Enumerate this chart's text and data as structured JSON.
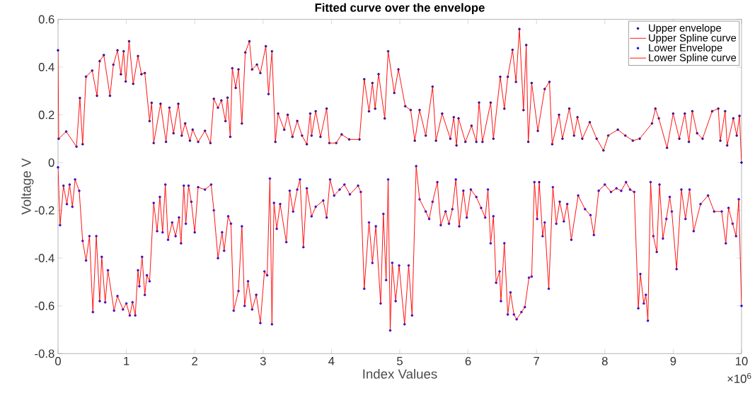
{
  "chart_data": {
    "type": "line",
    "title": "Fitted curve over the envelope",
    "xlabel": "Index Values",
    "ylabel": "Voltage V",
    "annotations": [
      "×10$^{6}$"
    ],
    "xlim": [
      0,
      10
    ],
    "ylim": [
      -0.8,
      0.6
    ],
    "xticks": [
      0,
      1,
      2,
      3,
      4,
      5,
      6,
      7,
      8,
      9,
      10
    ],
    "yticks": [
      -0.8,
      -0.6,
      -0.4,
      -0.2,
      0,
      0.2,
      0.4,
      0.6
    ],
    "legend": "top right",
    "series": [
      {
        "name": "Upper envelope",
        "type": "scatter",
        "marker": "circle",
        "color": "#0000aa",
        "x": [
          0,
          0.01,
          0.12,
          0.27,
          0.32,
          0.36,
          0.41,
          0.5,
          0.57,
          0.61,
          0.67,
          0.76,
          0.81,
          0.87,
          0.92,
          0.96,
          0.99,
          1.04,
          1.1,
          1.17,
          1.22,
          1.27,
          1.34,
          1.37,
          1.4,
          1.5,
          1.58,
          1.63,
          1.69,
          1.76,
          1.81,
          1.86,
          1.93,
          1.97,
          2.05,
          2.15,
          2.23,
          2.28,
          2.34,
          2.39,
          2.45,
          2.48,
          2.52,
          2.55,
          2.6,
          2.64,
          2.69,
          2.74,
          2.8,
          2.84,
          2.91,
          2.96,
          3.04,
          3.08,
          3.13,
          3.18,
          3.22,
          3.31,
          3.36,
          3.43,
          3.5,
          3.57,
          3.64,
          3.69,
          3.71,
          3.77,
          3.84,
          3.93,
          3.97,
          4.07,
          4.15,
          4.26,
          4.41,
          4.48,
          4.55,
          4.6,
          4.64,
          4.69,
          4.78,
          4.83,
          4.92,
          4.98,
          5.08,
          5.16,
          5.22,
          5.29,
          5.38,
          5.48,
          5.53,
          5.62,
          5.74,
          5.79,
          5.83,
          5.86,
          5.96,
          6.05,
          6.12,
          6.16,
          6.21,
          6.33,
          6.37,
          6.47,
          6.53,
          6.58,
          6.65,
          6.7,
          6.75,
          6.81,
          6.85,
          6.88,
          6.93,
          7.02,
          7.12,
          7.19,
          7.23,
          7.33,
          7.38,
          7.48,
          7.55,
          7.6,
          7.67,
          7.78,
          7.88,
          7.98,
          8.05,
          8.19,
          8.3,
          8.41,
          8.51,
          8.69,
          8.74,
          8.79,
          8.91,
          9.0,
          9.09,
          9.17,
          9.23,
          9.28,
          9.35,
          9.43,
          9.57,
          9.66,
          9.69,
          9.76,
          9.79,
          9.88,
          9.93,
          9.97,
          10.0
        ],
        "values": [
          0.47,
          0.1,
          0.13,
          0.067,
          0.27,
          0.077,
          0.36,
          0.385,
          0.28,
          0.425,
          0.45,
          0.28,
          0.41,
          0.47,
          0.37,
          0.466,
          0.34,
          0.508,
          0.33,
          0.446,
          0.37,
          0.375,
          0.174,
          0.25,
          0.082,
          0.246,
          0.087,
          0.23,
          0.123,
          0.246,
          0.113,
          0.164,
          0.092,
          0.138,
          0.087,
          0.133,
          0.082,
          0.267,
          0.23,
          0.26,
          0.174,
          0.272,
          0.108,
          0.395,
          0.313,
          0.39,
          0.164,
          0.461,
          0.508,
          0.39,
          0.41,
          0.375,
          0.487,
          0.287,
          0.466,
          0.087,
          0.205,
          0.138,
          0.2,
          0.108,
          0.174,
          0.113,
          0.077,
          0.205,
          0.113,
          0.215,
          0.108,
          0.226,
          0.082,
          0.082,
          0.118,
          0.097,
          0.097,
          0.349,
          0.215,
          0.333,
          0.226,
          0.37,
          0.185,
          0.466,
          0.292,
          0.39,
          0.236,
          0.22,
          0.092,
          0.22,
          0.113,
          0.318,
          0.092,
          0.205,
          0.1,
          0.19,
          0.072,
          0.185,
          0.087,
          0.154,
          0.087,
          0.251,
          0.087,
          0.251,
          0.1,
          0.359,
          0.226,
          0.359,
          0.472,
          0.338,
          0.559,
          0.22,
          0.492,
          0.087,
          0.333,
          0.133,
          0.308,
          0.338,
          0.077,
          0.2,
          0.1,
          0.226,
          0.113,
          0.19,
          0.1,
          0.169,
          0.1,
          0.051,
          0.113,
          0.138,
          0.113,
          0.092,
          0.1,
          0.164,
          0.226,
          0.185,
          0.062,
          0.205,
          0.1,
          0.205,
          0.087,
          0.215,
          0.123,
          0.1,
          0.215,
          0.226,
          0.092,
          0.215,
          0.072,
          0.185,
          0.113,
          0.195,
          0.0
        ]
      },
      {
        "name": "Upper Spline curve",
        "color": "#ff0000",
        "x": [
          0,
          0.01,
          0.12,
          0.27,
          0.32,
          0.36,
          0.41,
          0.5,
          0.57,
          0.61,
          0.67,
          0.76,
          0.81,
          0.87,
          0.92,
          0.96,
          0.99,
          1.04,
          1.1,
          1.17,
          1.22,
          1.27,
          1.34,
          1.37,
          1.4,
          1.5,
          1.58,
          1.63,
          1.69,
          1.76,
          1.81,
          1.86,
          1.93,
          1.97,
          2.05,
          2.15,
          2.23,
          2.28,
          2.34,
          2.39,
          2.45,
          2.48,
          2.52,
          2.55,
          2.6,
          2.64,
          2.69,
          2.74,
          2.8,
          2.84,
          2.91,
          2.96,
          3.04,
          3.08,
          3.13,
          3.18,
          3.22,
          3.31,
          3.36,
          3.43,
          3.5,
          3.57,
          3.64,
          3.69,
          3.71,
          3.77,
          3.84,
          3.93,
          3.97,
          4.07,
          4.15,
          4.26,
          4.41,
          4.48,
          4.55,
          4.6,
          4.64,
          4.69,
          4.78,
          4.83,
          4.92,
          4.98,
          5.08,
          5.16,
          5.22,
          5.29,
          5.38,
          5.48,
          5.53,
          5.62,
          5.74,
          5.79,
          5.83,
          5.86,
          5.96,
          6.05,
          6.12,
          6.16,
          6.21,
          6.33,
          6.37,
          6.47,
          6.53,
          6.58,
          6.65,
          6.7,
          6.75,
          6.81,
          6.85,
          6.88,
          6.93,
          7.02,
          7.12,
          7.19,
          7.23,
          7.33,
          7.38,
          7.48,
          7.55,
          7.6,
          7.67,
          7.78,
          7.88,
          7.98,
          8.05,
          8.19,
          8.3,
          8.41,
          8.51,
          8.69,
          8.74,
          8.79,
          8.91,
          9.0,
          9.09,
          9.17,
          9.23,
          9.28,
          9.35,
          9.43,
          9.57,
          9.66,
          9.69,
          9.76,
          9.79,
          9.88,
          9.93,
          9.97,
          10.0
        ],
        "values": [
          0.47,
          0.1,
          0.13,
          0.067,
          0.27,
          0.077,
          0.36,
          0.385,
          0.28,
          0.425,
          0.45,
          0.28,
          0.41,
          0.47,
          0.37,
          0.466,
          0.34,
          0.508,
          0.33,
          0.446,
          0.37,
          0.375,
          0.174,
          0.25,
          0.082,
          0.246,
          0.087,
          0.23,
          0.123,
          0.246,
          0.113,
          0.164,
          0.092,
          0.138,
          0.087,
          0.133,
          0.082,
          0.267,
          0.23,
          0.26,
          0.174,
          0.272,
          0.108,
          0.395,
          0.313,
          0.39,
          0.164,
          0.461,
          0.508,
          0.39,
          0.41,
          0.375,
          0.487,
          0.287,
          0.466,
          0.087,
          0.205,
          0.138,
          0.2,
          0.108,
          0.174,
          0.113,
          0.077,
          0.205,
          0.113,
          0.215,
          0.108,
          0.226,
          0.082,
          0.082,
          0.118,
          0.097,
          0.097,
          0.349,
          0.215,
          0.333,
          0.226,
          0.37,
          0.185,
          0.466,
          0.292,
          0.39,
          0.236,
          0.22,
          0.092,
          0.22,
          0.113,
          0.318,
          0.092,
          0.205,
          0.1,
          0.19,
          0.072,
          0.185,
          0.087,
          0.154,
          0.087,
          0.251,
          0.087,
          0.251,
          0.1,
          0.359,
          0.226,
          0.359,
          0.472,
          0.338,
          0.559,
          0.22,
          0.492,
          0.087,
          0.333,
          0.133,
          0.308,
          0.338,
          0.077,
          0.2,
          0.1,
          0.226,
          0.113,
          0.19,
          0.1,
          0.169,
          0.1,
          0.051,
          0.113,
          0.138,
          0.113,
          0.092,
          0.1,
          0.164,
          0.226,
          0.185,
          0.062,
          0.205,
          0.1,
          0.205,
          0.087,
          0.215,
          0.123,
          0.1,
          0.215,
          0.226,
          0.092,
          0.215,
          0.072,
          0.185,
          0.113,
          0.195,
          0.0
        ]
      },
      {
        "name": "Lower Envelope",
        "type": "scatter",
        "marker": "circle",
        "color": "#0000ff",
        "x": [
          0,
          0.03,
          0.08,
          0.13,
          0.17,
          0.21,
          0.25,
          0.31,
          0.36,
          0.41,
          0.46,
          0.51,
          0.56,
          0.61,
          0.64,
          0.69,
          0.73,
          0.82,
          0.87,
          0.95,
          1.0,
          1.05,
          1.09,
          1.13,
          1.17,
          1.19,
          1.23,
          1.27,
          1.3,
          1.34,
          1.4,
          1.45,
          1.49,
          1.53,
          1.57,
          1.61,
          1.67,
          1.72,
          1.77,
          1.8,
          1.84,
          1.87,
          1.91,
          1.95,
          2.0,
          2.05,
          2.15,
          2.24,
          2.28,
          2.34,
          2.4,
          2.43,
          2.49,
          2.53,
          2.57,
          2.64,
          2.69,
          2.73,
          2.78,
          2.84,
          2.9,
          2.96,
          3.02,
          3.06,
          3.1,
          3.13,
          3.16,
          3.2,
          3.25,
          3.34,
          3.39,
          3.44,
          3.5,
          3.54,
          3.59,
          3.64,
          3.71,
          3.77,
          3.88,
          3.93,
          3.98,
          4.04,
          4.12,
          4.19,
          4.27,
          4.39,
          4.43,
          4.48,
          4.55,
          4.6,
          4.65,
          4.72,
          4.76,
          4.8,
          4.83,
          4.86,
          4.89,
          4.94,
          4.99,
          5.07,
          5.13,
          5.18,
          5.24,
          5.29,
          5.38,
          5.43,
          5.48,
          5.55,
          5.6,
          5.67,
          5.72,
          5.77,
          5.82,
          5.87,
          5.93,
          5.98,
          6.04,
          6.12,
          6.19,
          6.25,
          6.29,
          6.33,
          6.37,
          6.41,
          6.46,
          6.48,
          6.53,
          6.58,
          6.62,
          6.67,
          6.71,
          6.78,
          6.83,
          6.89,
          6.93,
          6.97,
          7.01,
          7.04,
          7.09,
          7.12,
          7.18,
          7.24,
          7.29,
          7.34,
          7.4,
          7.45,
          7.51,
          7.61,
          7.71,
          7.79,
          7.84,
          7.91,
          8.0,
          8.09,
          8.17,
          8.24,
          8.31,
          8.37,
          8.43,
          8.49,
          8.52,
          8.57,
          8.6,
          8.63,
          8.67,
          8.71,
          8.76,
          8.8,
          8.85,
          8.9,
          8.95,
          8.98,
          9.05,
          9.12,
          9.18,
          9.24,
          9.3,
          9.4,
          9.51,
          9.6,
          9.71,
          9.77,
          9.81,
          9.87,
          9.92,
          9.96,
          10.0
        ],
        "values": [
          -0.02,
          -0.262,
          -0.097,
          -0.174,
          -0.092,
          -0.185,
          -0.071,
          -0.118,
          -0.328,
          -0.41,
          -0.308,
          -0.626,
          -0.308,
          -0.58,
          -0.395,
          -0.585,
          -0.451,
          -0.62,
          -0.559,
          -0.615,
          -0.59,
          -0.64,
          -0.585,
          -0.64,
          -0.451,
          -0.518,
          -0.395,
          -0.554,
          -0.472,
          -0.497,
          -0.169,
          -0.287,
          -0.144,
          -0.292,
          -0.092,
          -0.323,
          -0.251,
          -0.308,
          -0.23,
          -0.338,
          -0.097,
          -0.256,
          -0.097,
          -0.164,
          -0.292,
          -0.103,
          -0.113,
          -0.092,
          -0.2,
          -0.4,
          -0.292,
          -0.369,
          -0.225,
          -0.256,
          -0.62,
          -0.538,
          -0.267,
          -0.6,
          -0.497,
          -0.615,
          -0.554,
          -0.672,
          -0.456,
          -0.472,
          -0.067,
          -0.677,
          -0.169,
          -0.277,
          -0.174,
          -0.333,
          -0.118,
          -0.205,
          -0.113,
          -0.071,
          -0.354,
          -0.108,
          -0.225,
          -0.185,
          -0.159,
          -0.23,
          -0.071,
          -0.138,
          -0.113,
          -0.092,
          -0.133,
          -0.097,
          -0.123,
          -0.528,
          -0.251,
          -0.42,
          -0.267,
          -0.59,
          -0.215,
          -0.492,
          -0.071,
          -0.703,
          -0.42,
          -0.58,
          -0.431,
          -0.677,
          -0.431,
          -0.64,
          -0.015,
          -0.154,
          -0.205,
          -0.236,
          -0.164,
          -0.082,
          -0.262,
          -0.205,
          -0.256,
          -0.195,
          -0.071,
          -0.267,
          -0.118,
          -0.23,
          -0.113,
          -0.144,
          -0.19,
          -0.23,
          -0.113,
          -0.338,
          -0.225,
          -0.503,
          -0.456,
          -0.58,
          -0.338,
          -0.636,
          -0.544,
          -0.636,
          -0.656,
          -0.626,
          -0.605,
          -0.482,
          -0.477,
          -0.082,
          -0.236,
          -0.082,
          -0.308,
          -0.251,
          -0.528,
          -0.103,
          -0.256,
          -0.164,
          -0.246,
          -0.174,
          -0.323,
          -0.138,
          -0.195,
          -0.22,
          -0.303,
          -0.118,
          -0.092,
          -0.123,
          -0.108,
          -0.118,
          -0.082,
          -0.113,
          -0.123,
          -0.61,
          -0.467,
          -0.59,
          -0.554,
          -0.662,
          -0.082,
          -0.308,
          -0.374,
          -0.092,
          -0.318,
          -0.236,
          -0.144,
          -0.205,
          -0.446,
          -0.113,
          -0.236,
          -0.113,
          -0.287,
          -0.174,
          -0.138,
          -0.205,
          -0.205,
          -0.338,
          -0.19,
          -0.256,
          -0.308,
          -0.154,
          -0.6
        ]
      },
      {
        "name": "Lower Spline curve",
        "color": "#ff0000",
        "x": [
          0,
          0.03,
          0.08,
          0.13,
          0.17,
          0.21,
          0.25,
          0.31,
          0.36,
          0.41,
          0.46,
          0.51,
          0.56,
          0.61,
          0.64,
          0.69,
          0.73,
          0.82,
          0.87,
          0.95,
          1.0,
          1.05,
          1.09,
          1.13,
          1.17,
          1.19,
          1.23,
          1.27,
          1.3,
          1.34,
          1.4,
          1.45,
          1.49,
          1.53,
          1.57,
          1.61,
          1.67,
          1.72,
          1.77,
          1.8,
          1.84,
          1.87,
          1.91,
          1.95,
          2.0,
          2.05,
          2.15,
          2.24,
          2.28,
          2.34,
          2.4,
          2.43,
          2.49,
          2.53,
          2.57,
          2.64,
          2.69,
          2.73,
          2.78,
          2.84,
          2.9,
          2.96,
          3.02,
          3.06,
          3.1,
          3.13,
          3.16,
          3.2,
          3.25,
          3.34,
          3.39,
          3.44,
          3.5,
          3.54,
          3.59,
          3.64,
          3.71,
          3.77,
          3.88,
          3.93,
          3.98,
          4.04,
          4.12,
          4.19,
          4.27,
          4.39,
          4.43,
          4.48,
          4.55,
          4.6,
          4.65,
          4.72,
          4.76,
          4.8,
          4.83,
          4.86,
          4.89,
          4.94,
          4.99,
          5.07,
          5.13,
          5.18,
          5.24,
          5.29,
          5.38,
          5.43,
          5.48,
          5.55,
          5.6,
          5.67,
          5.72,
          5.77,
          5.82,
          5.87,
          5.93,
          5.98,
          6.04,
          6.12,
          6.19,
          6.25,
          6.29,
          6.33,
          6.37,
          6.41,
          6.46,
          6.48,
          6.53,
          6.58,
          6.62,
          6.67,
          6.71,
          6.78,
          6.83,
          6.89,
          6.93,
          6.97,
          7.01,
          7.04,
          7.09,
          7.12,
          7.18,
          7.24,
          7.29,
          7.34,
          7.4,
          7.45,
          7.51,
          7.61,
          7.71,
          7.79,
          7.84,
          7.91,
          8.0,
          8.09,
          8.17,
          8.24,
          8.31,
          8.37,
          8.43,
          8.49,
          8.52,
          8.57,
          8.6,
          8.63,
          8.67,
          8.71,
          8.76,
          8.8,
          8.85,
          8.9,
          8.95,
          8.98,
          9.05,
          9.12,
          9.18,
          9.24,
          9.3,
          9.4,
          9.51,
          9.6,
          9.71,
          9.77,
          9.81,
          9.87,
          9.92,
          9.96,
          10.0
        ],
        "values": [
          -0.02,
          -0.262,
          -0.097,
          -0.174,
          -0.092,
          -0.185,
          -0.071,
          -0.118,
          -0.328,
          -0.41,
          -0.308,
          -0.626,
          -0.308,
          -0.58,
          -0.395,
          -0.585,
          -0.451,
          -0.62,
          -0.559,
          -0.615,
          -0.59,
          -0.64,
          -0.585,
          -0.64,
          -0.451,
          -0.518,
          -0.395,
          -0.554,
          -0.472,
          -0.497,
          -0.169,
          -0.287,
          -0.144,
          -0.292,
          -0.092,
          -0.323,
          -0.251,
          -0.308,
          -0.23,
          -0.338,
          -0.097,
          -0.256,
          -0.097,
          -0.164,
          -0.292,
          -0.103,
          -0.113,
          -0.092,
          -0.2,
          -0.4,
          -0.292,
          -0.369,
          -0.225,
          -0.256,
          -0.62,
          -0.538,
          -0.267,
          -0.6,
          -0.497,
          -0.615,
          -0.554,
          -0.672,
          -0.456,
          -0.472,
          -0.067,
          -0.677,
          -0.169,
          -0.277,
          -0.174,
          -0.333,
          -0.118,
          -0.205,
          -0.113,
          -0.071,
          -0.354,
          -0.108,
          -0.225,
          -0.185,
          -0.159,
          -0.23,
          -0.071,
          -0.138,
          -0.113,
          -0.092,
          -0.133,
          -0.097,
          -0.123,
          -0.528,
          -0.251,
          -0.42,
          -0.267,
          -0.59,
          -0.215,
          -0.492,
          -0.071,
          -0.703,
          -0.42,
          -0.58,
          -0.431,
          -0.677,
          -0.431,
          -0.64,
          -0.015,
          -0.154,
          -0.205,
          -0.236,
          -0.164,
          -0.082,
          -0.262,
          -0.205,
          -0.256,
          -0.195,
          -0.071,
          -0.267,
          -0.118,
          -0.23,
          -0.113,
          -0.144,
          -0.19,
          -0.23,
          -0.113,
          -0.338,
          -0.225,
          -0.503,
          -0.456,
          -0.58,
          -0.338,
          -0.636,
          -0.544,
          -0.636,
          -0.656,
          -0.626,
          -0.605,
          -0.482,
          -0.477,
          -0.082,
          -0.236,
          -0.082,
          -0.308,
          -0.251,
          -0.528,
          -0.103,
          -0.256,
          -0.164,
          -0.246,
          -0.174,
          -0.323,
          -0.138,
          -0.195,
          -0.22,
          -0.303,
          -0.118,
          -0.092,
          -0.123,
          -0.108,
          -0.118,
          -0.082,
          -0.113,
          -0.123,
          -0.61,
          -0.467,
          -0.59,
          -0.554,
          -0.662,
          -0.082,
          -0.308,
          -0.374,
          -0.092,
          -0.318,
          -0.236,
          -0.144,
          -0.205,
          -0.446,
          -0.113,
          -0.236,
          -0.113,
          -0.287,
          -0.174,
          -0.138,
          -0.205,
          -0.205,
          -0.338,
          -0.19,
          -0.256,
          -0.308,
          -0.154,
          -0.6
        ]
      }
    ]
  }
}
